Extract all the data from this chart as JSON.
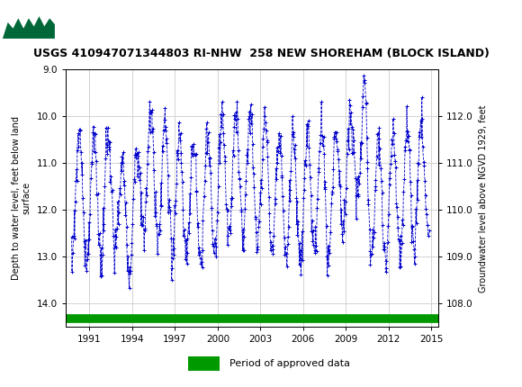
{
  "title": "USGS 410947071344803 RI-NHW  258 NEW SHOREHAM (BLOCK ISLAND)",
  "ylabel_left": "Depth to water level, feet below land\nsurface",
  "ylabel_right": "Groundwater level above NGVD 1929, feet",
  "ylim_left_top": 9.0,
  "ylim_left_bottom": 14.5,
  "ylim_right_bottom": 107.5,
  "ylim_right_top": 113.0,
  "xlim_left": 1989.3,
  "xlim_right": 2015.5,
  "yticks_left": [
    9.0,
    10.0,
    11.0,
    12.0,
    13.0,
    14.0
  ],
  "yticks_right": [
    108.0,
    109.0,
    110.0,
    111.0,
    112.0
  ],
  "xticks": [
    1991,
    1994,
    1997,
    2000,
    2003,
    2006,
    2009,
    2012,
    2015
  ],
  "data_color": "#0000cc",
  "background_color": "#ffffff",
  "header_color": "#006838",
  "legend_label": "Period of approved data",
  "legend_color": "#009900",
  "line_style": "--",
  "marker": "+",
  "marker_size": 3,
  "line_width": 0.6,
  "grid_color": "#cccccc",
  "ref_level": 122.0,
  "green_bar_y": 14.32,
  "green_bar_linewidth": 7
}
